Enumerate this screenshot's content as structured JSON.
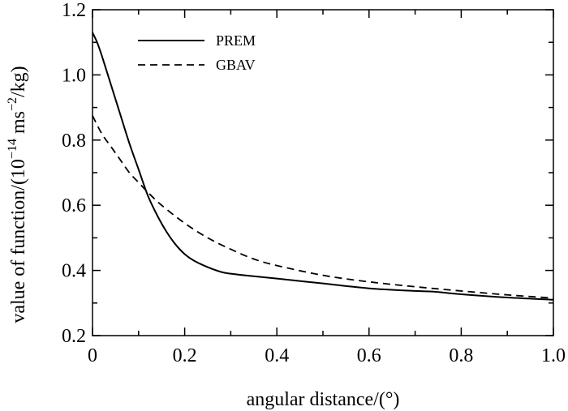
{
  "chart_data": {
    "type": "line",
    "title": "",
    "xlabel": "angular distance/(°)",
    "ylabel": {
      "prefix": "value of function/(10",
      "exp1": "−14",
      "middle": " ms",
      "exp2": "−2",
      "suffix": "/kg)"
    },
    "xlim": [
      0,
      1.0
    ],
    "ylim": [
      0.2,
      1.2
    ],
    "xticks": [
      0,
      0.2,
      0.4,
      0.6,
      0.8,
      1.0
    ],
    "xtick_labels": [
      "0",
      "0.2",
      "0.4",
      "0.6",
      "0.8",
      "1.0"
    ],
    "yticks": [
      0.2,
      0.4,
      0.6,
      0.8,
      1.0,
      1.2
    ],
    "ytick_labels": [
      "0.2",
      "0.4",
      "0.6",
      "0.8",
      "1.0",
      "1.2"
    ],
    "grid": false,
    "legend": "top-left",
    "series": [
      {
        "name": "PREM",
        "style": "solid",
        "color": "#000000",
        "x": [
          0,
          0.01,
          0.02,
          0.04,
          0.06,
          0.08,
          0.1,
          0.12,
          0.14,
          0.16,
          0.18,
          0.2,
          0.22,
          0.25,
          0.28,
          0.3,
          0.33,
          0.4,
          0.5,
          0.6,
          0.7,
          0.74,
          0.8,
          0.9,
          1.0
        ],
        "y": [
          1.13,
          1.1,
          1.06,
          0.97,
          0.88,
          0.79,
          0.71,
          0.63,
          0.57,
          0.52,
          0.48,
          0.45,
          0.43,
          0.41,
          0.395,
          0.39,
          0.385,
          0.375,
          0.36,
          0.345,
          0.337,
          0.335,
          0.327,
          0.317,
          0.31
        ]
      },
      {
        "name": "GBAV",
        "style": "dashed",
        "color": "#000000",
        "x": [
          0,
          0.02,
          0.04,
          0.06,
          0.08,
          0.1,
          0.12,
          0.15,
          0.2,
          0.25,
          0.3,
          0.35,
          0.4,
          0.5,
          0.6,
          0.7,
          0.8,
          0.9,
          1.0
        ],
        "y": [
          0.875,
          0.82,
          0.78,
          0.74,
          0.7,
          0.67,
          0.64,
          0.6,
          0.545,
          0.5,
          0.465,
          0.435,
          0.415,
          0.385,
          0.365,
          0.35,
          0.337,
          0.325,
          0.315
        ]
      }
    ]
  }
}
